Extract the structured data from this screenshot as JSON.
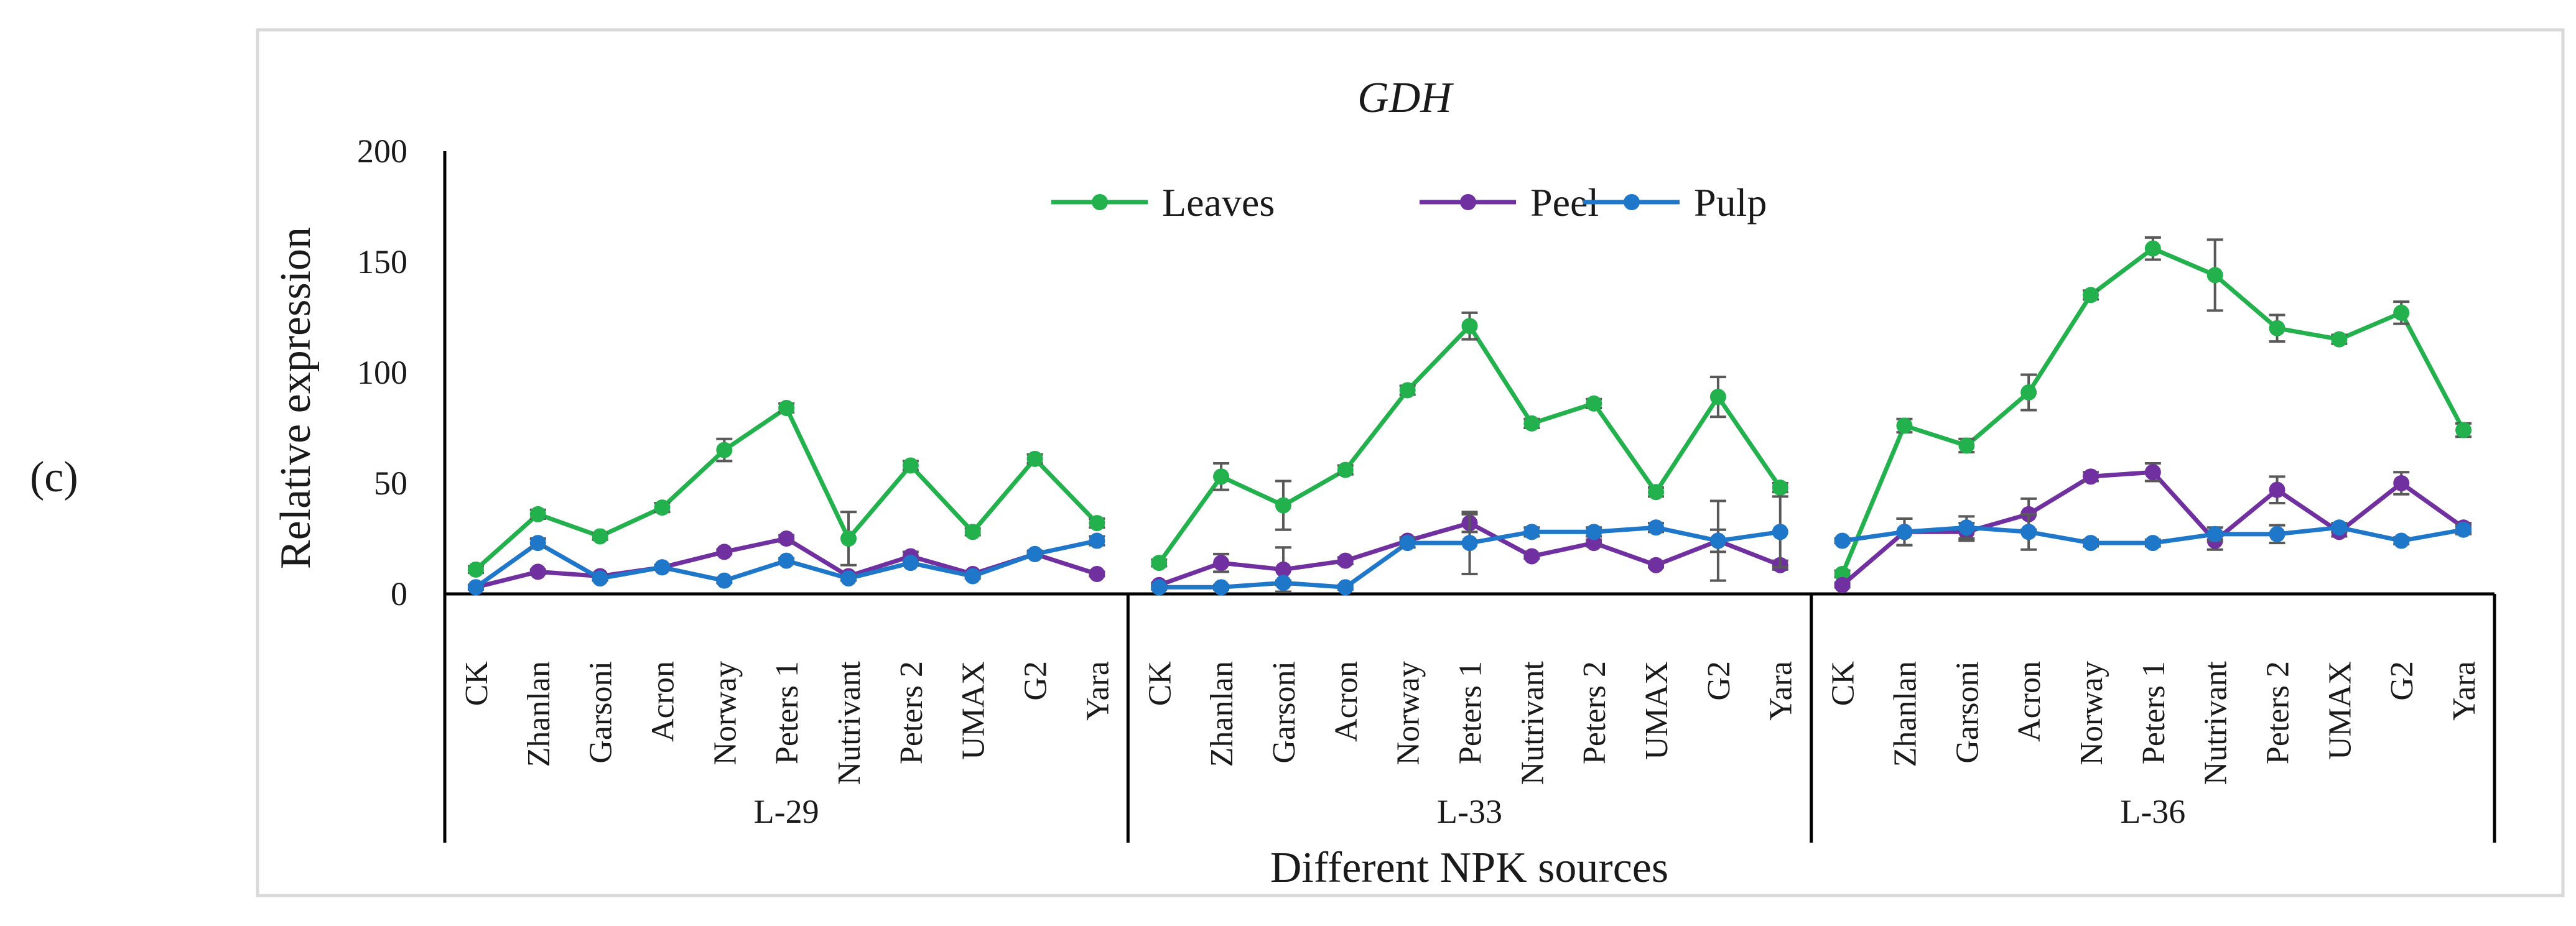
{
  "panel_label": "(c)",
  "chart_data": {
    "type": "line",
    "title": "GDH",
    "xlabel": "Different NPK sources",
    "ylabel": "Relative expression",
    "ylim": [
      0,
      200
    ],
    "yticks": [
      0,
      50,
      100,
      150,
      200
    ],
    "grid": false,
    "legend_position": "top-center",
    "groups": [
      "L-29",
      "L-33",
      "L-36"
    ],
    "categories": [
      "CK",
      "Zhanlan",
      "Garsoni",
      "Acron",
      "Norway",
      "Peters 1",
      "Nutrivant",
      "Peters 2",
      "UMAX",
      "G2",
      "Yara"
    ],
    "series": [
      {
        "name": "Leaves",
        "color": "#22b14c",
        "values": [
          [
            11,
            36,
            26,
            39,
            65,
            84,
            25,
            58,
            28,
            61,
            32
          ],
          [
            14,
            53,
            40,
            56,
            92,
            121,
            77,
            86,
            46,
            89,
            48
          ],
          [
            9,
            76,
            67,
            91,
            135,
            156,
            144,
            120,
            115,
            127,
            74
          ]
        ],
        "errors": [
          [
            1.5,
            2,
            1.5,
            2,
            5,
            2,
            12,
            2,
            1.5,
            2,
            2
          ],
          [
            1.5,
            6,
            11,
            2,
            2,
            6,
            2,
            2,
            2,
            9,
            2
          ],
          [
            1.5,
            3,
            3,
            8,
            2,
            5,
            16,
            6,
            2,
            5,
            3
          ]
        ]
      },
      {
        "name": "Peel",
        "color": "#7030a0",
        "values": [
          [
            3,
            10,
            8,
            12,
            19,
            25,
            8,
            17,
            9,
            18,
            9
          ],
          [
            4,
            14,
            11,
            15,
            24,
            32,
            17,
            23,
            13,
            24,
            13
          ],
          [
            4,
            28,
            28,
            36,
            53,
            55,
            24,
            47,
            28,
            50,
            30
          ]
        ],
        "errors": [
          [
            1,
            1,
            1,
            1,
            1,
            1.5,
            1,
            2,
            1,
            1.5,
            1
          ],
          [
            1,
            4,
            10,
            1.5,
            1.5,
            4,
            1,
            1.5,
            1,
            5,
            2
          ],
          [
            1,
            6,
            4,
            7,
            2,
            4,
            4,
            6,
            2,
            5,
            2
          ]
        ]
      },
      {
        "name": "Pulp",
        "color": "#1f77c9",
        "values": [
          [
            3,
            23,
            7,
            12,
            6,
            15,
            7,
            14,
            8,
            18,
            24
          ],
          [
            3,
            3,
            5,
            3,
            23,
            23,
            28,
            28,
            30,
            24,
            28
          ],
          [
            24,
            28,
            30,
            28,
            23,
            23,
            27,
            27,
            30,
            24,
            29
          ]
        ],
        "errors": [
          [
            1,
            2,
            1,
            1,
            1,
            1,
            1,
            1,
            1,
            1,
            2
          ],
          [
            1,
            1,
            1,
            1,
            2,
            14,
            2,
            2,
            2,
            18,
            16
          ],
          [
            1,
            6,
            5,
            8,
            1.5,
            1.5,
            3,
            4,
            2,
            1.5,
            2
          ]
        ]
      }
    ]
  }
}
